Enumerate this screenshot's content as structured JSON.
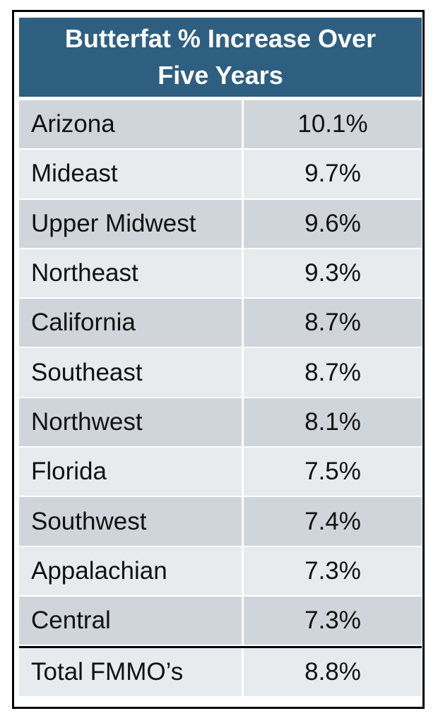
{
  "chart_data": {
    "type": "table",
    "title": "Butterfat % Increase Over Five Years",
    "rows": [
      {
        "region": "Arizona",
        "value": "10.1%"
      },
      {
        "region": "Mideast",
        "value": "9.7%"
      },
      {
        "region": "Upper Midwest",
        "value": "9.6%"
      },
      {
        "region": "Northeast",
        "value": "9.3%"
      },
      {
        "region": "California",
        "value": "8.7%"
      },
      {
        "region": "Southeast",
        "value": "8.7%"
      },
      {
        "region": "Northwest",
        "value": "8.1%"
      },
      {
        "region": "Florida",
        "value": "7.5%"
      },
      {
        "region": "Southwest",
        "value": "7.4%"
      },
      {
        "region": "Appalachian",
        "value": "7.3%"
      },
      {
        "region": "Central",
        "value": "7.3%"
      }
    ],
    "total": {
      "region": "Total FMMO’s",
      "value": "8.8%"
    }
  },
  "colors": {
    "header_bg": "#2e5f80",
    "row_dark": "#cfd5da",
    "row_light": "#e8ebed"
  }
}
